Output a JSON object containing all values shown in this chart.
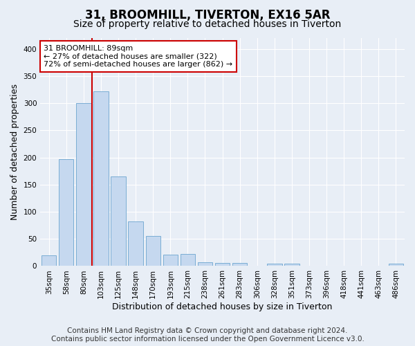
{
  "title_line1": "31, BROOMHILL, TIVERTON, EX16 5AR",
  "title_line2": "Size of property relative to detached houses in Tiverton",
  "xlabel": "Distribution of detached houses by size in Tiverton",
  "ylabel": "Number of detached properties",
  "footer_line1": "Contains HM Land Registry data © Crown copyright and database right 2024.",
  "footer_line2": "Contains public sector information licensed under the Open Government Licence v3.0.",
  "bar_labels": [
    "35sqm",
    "58sqm",
    "80sqm",
    "103sqm",
    "125sqm",
    "148sqm",
    "170sqm",
    "193sqm",
    "215sqm",
    "238sqm",
    "261sqm",
    "283sqm",
    "306sqm",
    "328sqm",
    "351sqm",
    "373sqm",
    "396sqm",
    "418sqm",
    "441sqm",
    "463sqm",
    "486sqm"
  ],
  "bar_values": [
    20,
    197,
    300,
    322,
    165,
    82,
    56,
    21,
    22,
    7,
    6,
    6,
    0,
    5,
    5,
    0,
    0,
    0,
    0,
    0,
    4
  ],
  "bar_color": "#c5d8ef",
  "bar_edge_color": "#7aadd4",
  "annotation_text_line1": "31 BROOMHILL: 89sqm",
  "annotation_text_line2": "← 27% of detached houses are smaller (322)",
  "annotation_text_line3": "72% of semi-detached houses are larger (862) →",
  "annotation_box_color": "#ffffff",
  "annotation_box_edge_color": "#cc0000",
  "vline_color": "#cc0000",
  "vline_x": 2.5,
  "ylim": [
    0,
    420
  ],
  "yticks": [
    0,
    50,
    100,
    150,
    200,
    250,
    300,
    350,
    400
  ],
  "background_color": "#e8eef6",
  "grid_color": "#ffffff",
  "title_fontsize": 12,
  "subtitle_fontsize": 10,
  "axis_label_fontsize": 9,
  "tick_fontsize": 7.5,
  "footer_fontsize": 7.5,
  "annotation_fontsize": 8
}
